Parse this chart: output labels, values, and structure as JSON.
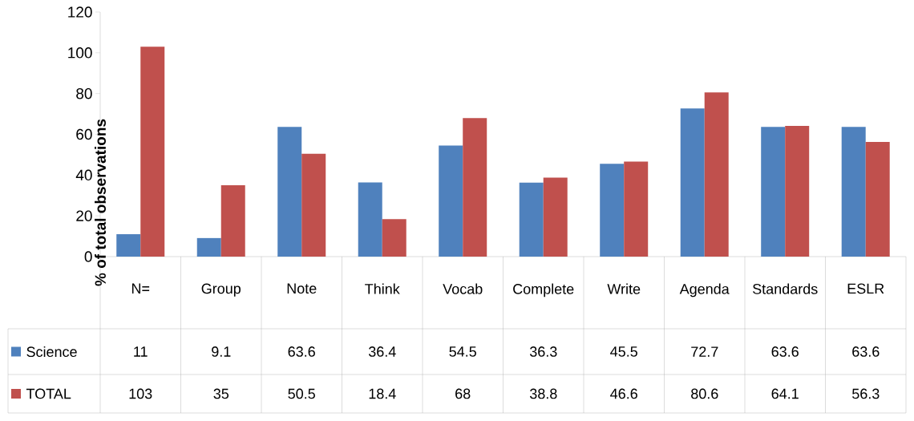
{
  "chart_data": {
    "type": "bar",
    "ylabel": "% of total observations",
    "categories": [
      "N=",
      "Group",
      "Note",
      "Think",
      "Vocab",
      "Complete",
      "Write",
      "Agenda",
      "Standards",
      "ESLR"
    ],
    "series": [
      {
        "name": "Science",
        "color": "#4f81bd",
        "values": [
          11,
          9.1,
          63.6,
          36.4,
          54.5,
          36.3,
          45.5,
          72.7,
          63.6,
          63.6
        ]
      },
      {
        "name": "TOTAL",
        "color": "#c0504d",
        "values": [
          103,
          35,
          50.5,
          18.4,
          68,
          38.8,
          46.6,
          80.6,
          64.1,
          56.3
        ]
      }
    ],
    "ylim": [
      0,
      120
    ],
    "yticks": [
      0,
      20,
      40,
      60,
      80,
      100,
      120
    ],
    "data_labels": true,
    "legend": "bottom"
  }
}
